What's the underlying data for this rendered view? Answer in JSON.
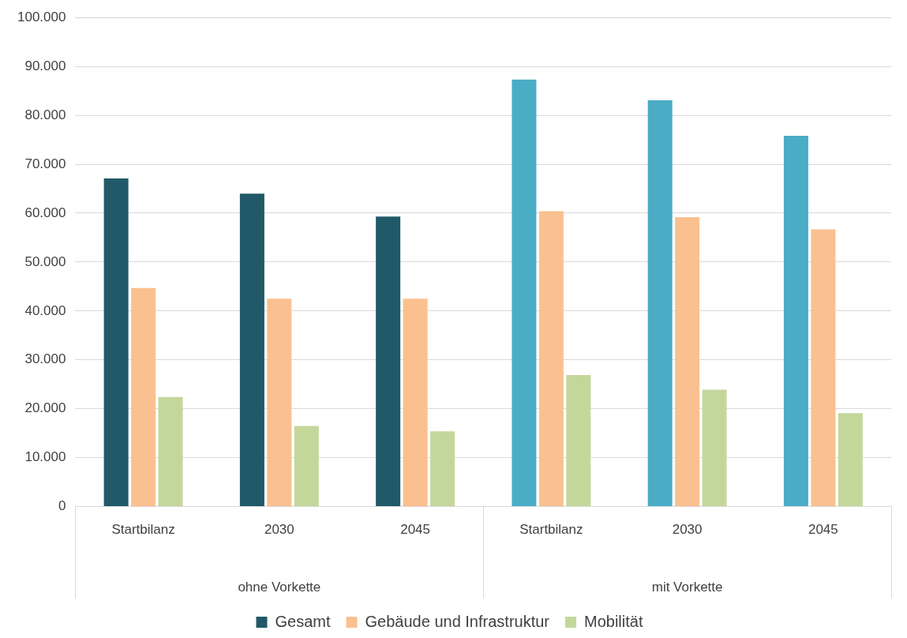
{
  "chart_data": {
    "type": "bar",
    "categories": [
      "Startbilanz",
      "2030",
      "2045",
      "Startbilanz",
      "2030",
      "2045"
    ],
    "series": [
      {
        "name": "Gesamt",
        "color": "#215968",
        "colors": [
          "#215968",
          "#215968",
          "#215968",
          "#4bacc6",
          "#4bacc6",
          "#4bacc6"
        ],
        "values": [
          67100,
          64000,
          59300,
          87300,
          83100,
          75800
        ]
      },
      {
        "name": "Gebäude und Infrastruktur",
        "color": "#fac090",
        "values": [
          44700,
          42500,
          42500,
          60400,
          59200,
          56700
        ]
      },
      {
        "name": "Mobilität",
        "color": "#c4d79b",
        "values": [
          22400,
          16500,
          15400,
          26900,
          23900,
          19100
        ]
      }
    ],
    "annotations": [
      "ohne Vorkette",
      "mit Vorkette"
    ],
    "ylim": [
      0,
      100000
    ],
    "yticks": [
      {
        "value": 0,
        "label": "0"
      },
      {
        "value": 10000,
        "label": "10.000"
      },
      {
        "value": 20000,
        "label": "20.000"
      },
      {
        "value": 30000,
        "label": "30.000"
      },
      {
        "value": 40000,
        "label": "40.000"
      },
      {
        "value": 50000,
        "label": "50.000"
      },
      {
        "value": 60000,
        "label": "60.000"
      },
      {
        "value": 70000,
        "label": "70.000"
      },
      {
        "value": 80000,
        "label": "80.000"
      },
      {
        "value": 90000,
        "label": "90.000"
      },
      {
        "value": 100000,
        "label": "100.000"
      }
    ],
    "grid": "y",
    "legend": "bottom"
  }
}
